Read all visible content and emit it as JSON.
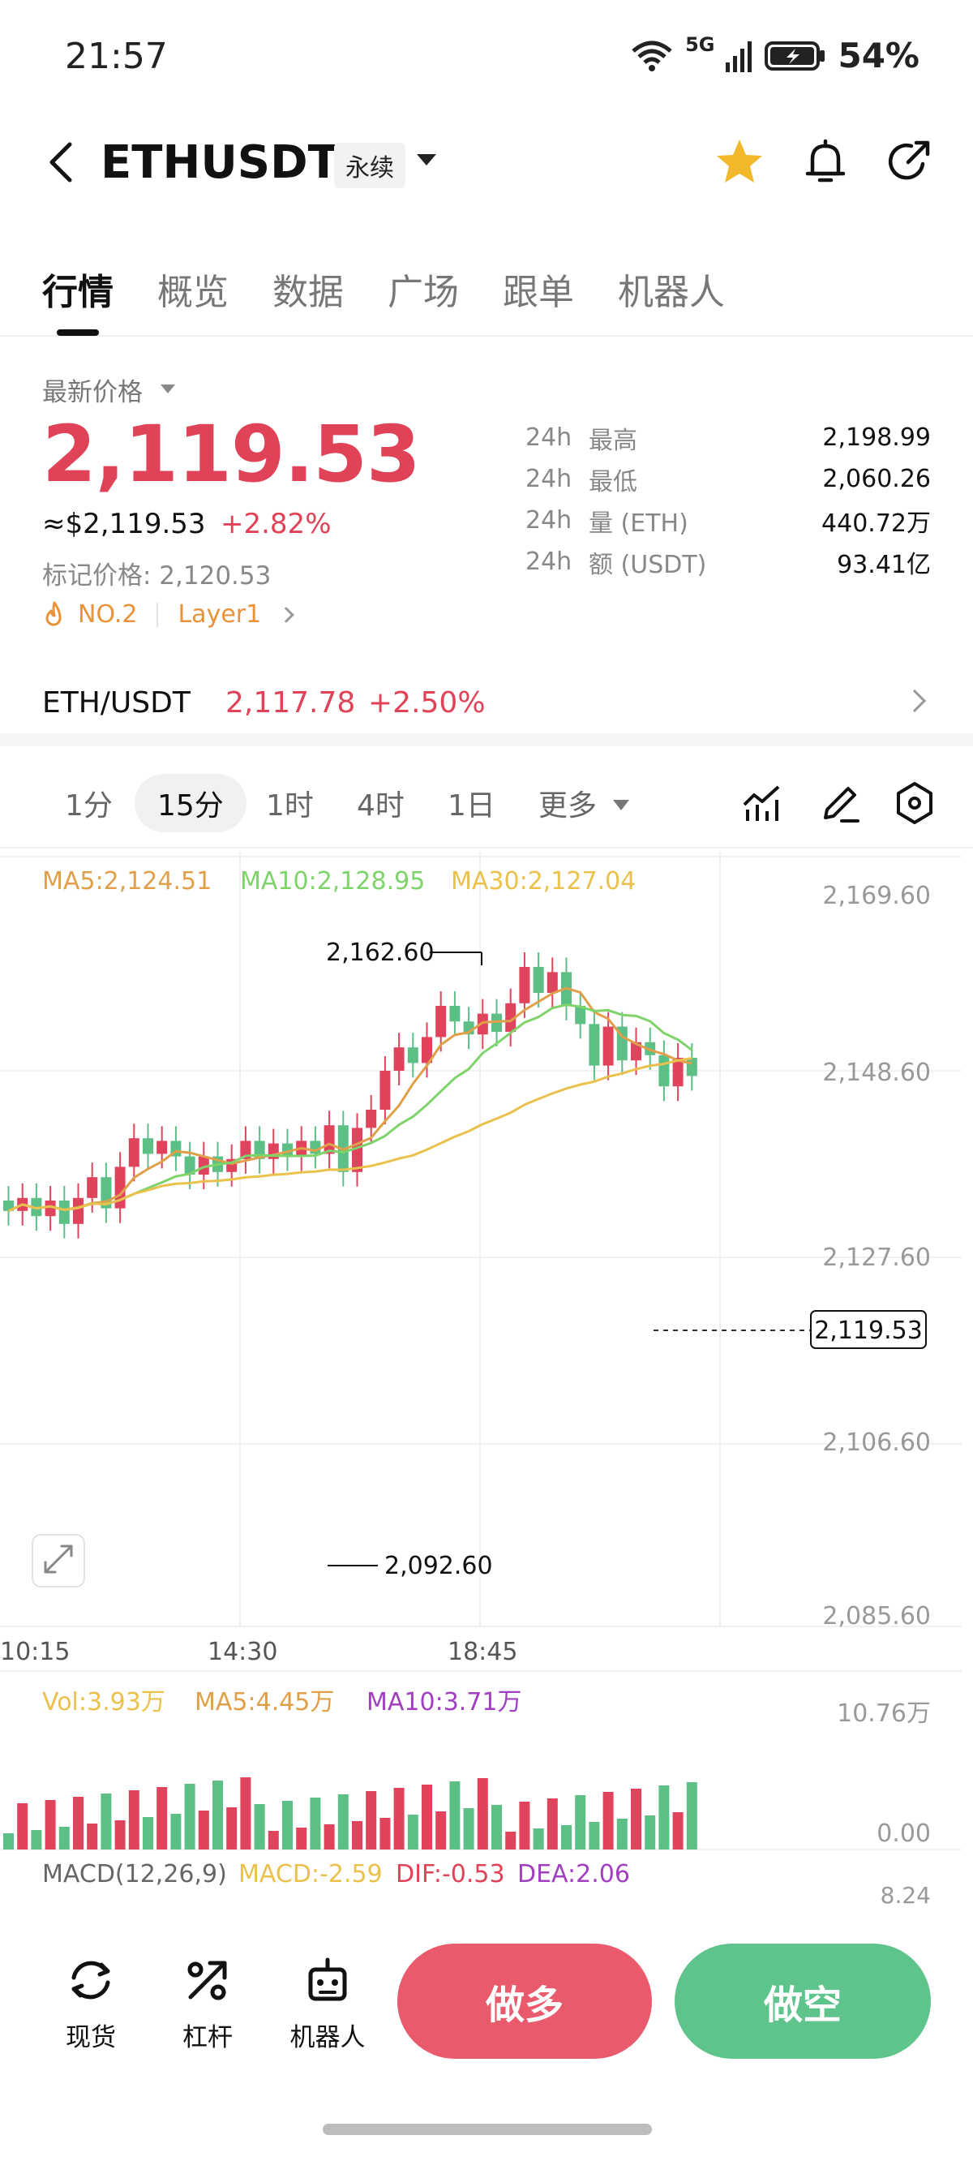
{
  "status": {
    "time": "21:57",
    "network": "5G",
    "battery": "54%"
  },
  "header": {
    "pair": "ETHUSDT",
    "badge": "永续"
  },
  "tabs": [
    "行情",
    "概览",
    "数据",
    "广场",
    "跟单",
    "机器人"
  ],
  "price": {
    "latest_label": "最新价格",
    "last": "2,119.53",
    "approx": "≈$2,119.53",
    "change": "+2.82%",
    "mark": "标记价格: 2,120.53",
    "rank": "NO.2",
    "tag": "Layer1"
  },
  "stats": [
    {
      "prefix": "24h",
      "label": "最高",
      "value": "2,198.99"
    },
    {
      "prefix": "24h",
      "label": "最低",
      "value": "2,060.26"
    },
    {
      "prefix": "24h",
      "label": "量 (ETH)",
      "value": "440.72万"
    },
    {
      "prefix": "24h",
      "label": "额 (USDT)",
      "value": "93.41亿"
    }
  ],
  "spot": {
    "name": "ETH/USDT",
    "price": "2,117.78",
    "change": "+2.50%"
  },
  "intervals": [
    "1分",
    "15分",
    "1时",
    "4时",
    "1日",
    "更多"
  ],
  "chart": {
    "ma5": "MA5:2,124.51",
    "ma10": "MA10:2,128.95",
    "ma30": "MA30:2,127.04",
    "y_ticks": [
      "2,169.60",
      "2,148.60",
      "2,127.60",
      "2,106.60",
      "2,085.60"
    ],
    "x_ticks": [
      "10:15",
      "14:30",
      "18:45"
    ],
    "high_label": "2,162.60",
    "low_label": "2,092.60",
    "last_label": "2,119.53",
    "vol": "Vol:3.93万",
    "vol_ma5": "MA5:4.45万",
    "vol_ma10": "MA10:3.71万",
    "vol_max": "10.76万",
    "vol_min": "0.00",
    "macd_title": "MACD(12,26,9)",
    "macd": "MACD:-2.59",
    "dif": "DIF:-0.53",
    "dea": "DEA:2.06",
    "macd_top": "8.24"
  },
  "bottom": {
    "spot": "现货",
    "lever": "杠杆",
    "robot": "机器人",
    "long": "做多",
    "short": "做空"
  }
}
